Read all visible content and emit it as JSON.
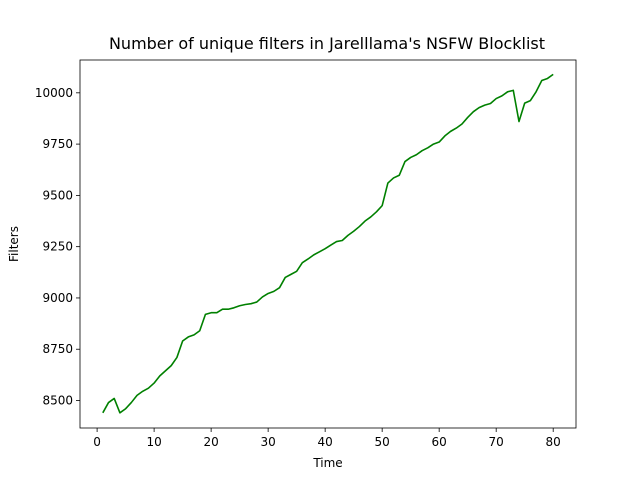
{
  "chart_data": {
    "type": "line",
    "title": "Number of unique filters in Jarelllama's NSFW Blocklist",
    "xlabel": "Time",
    "ylabel": "Filters",
    "xlim": [
      -3,
      84
    ],
    "ylim": [
      8366,
      10160
    ],
    "xticks": [
      0,
      10,
      20,
      30,
      40,
      50,
      60,
      70,
      80
    ],
    "yticks": [
      8500,
      8750,
      9000,
      9250,
      9500,
      9750,
      10000
    ],
    "grid": false,
    "legend": "none",
    "series": [
      {
        "color": "#008000",
        "x": [
          1,
          2,
          3,
          4,
          5,
          6,
          7,
          8,
          9,
          10,
          11,
          12,
          13,
          14,
          15,
          16,
          17,
          18,
          19,
          20,
          21,
          22,
          23,
          24,
          25,
          26,
          27,
          28,
          29,
          30,
          31,
          32,
          33,
          34,
          35,
          36,
          37,
          38,
          39,
          40,
          41,
          42,
          43,
          44,
          45,
          46,
          47,
          48,
          49,
          50,
          51,
          52,
          53,
          54,
          55,
          56,
          57,
          58,
          59,
          60,
          61,
          62,
          63,
          64,
          65,
          66,
          67,
          68,
          69,
          70,
          71,
          72,
          73,
          74,
          75,
          76,
          77,
          78,
          79,
          80
        ],
        "y": [
          8440,
          8490,
          8510,
          8440,
          8460,
          8490,
          8525,
          8545,
          8560,
          8585,
          8620,
          8645,
          8670,
          8710,
          8790,
          8810,
          8820,
          8840,
          8920,
          8928,
          8928,
          8945,
          8945,
          8952,
          8962,
          8968,
          8972,
          8980,
          9005,
          9022,
          9032,
          9050,
          9100,
          9115,
          9130,
          9172,
          9190,
          9210,
          9225,
          9240,
          9258,
          9275,
          9280,
          9305,
          9325,
          9348,
          9375,
          9395,
          9420,
          9450,
          9560,
          9585,
          9598,
          9665,
          9685,
          9698,
          9718,
          9732,
          9750,
          9760,
          9790,
          9812,
          9828,
          9848,
          9880,
          9908,
          9928,
          9940,
          9948,
          9972,
          9985,
          10005,
          10012,
          9860,
          9950,
          9962,
          10005,
          10060,
          10070,
          10090
        ]
      }
    ]
  }
}
